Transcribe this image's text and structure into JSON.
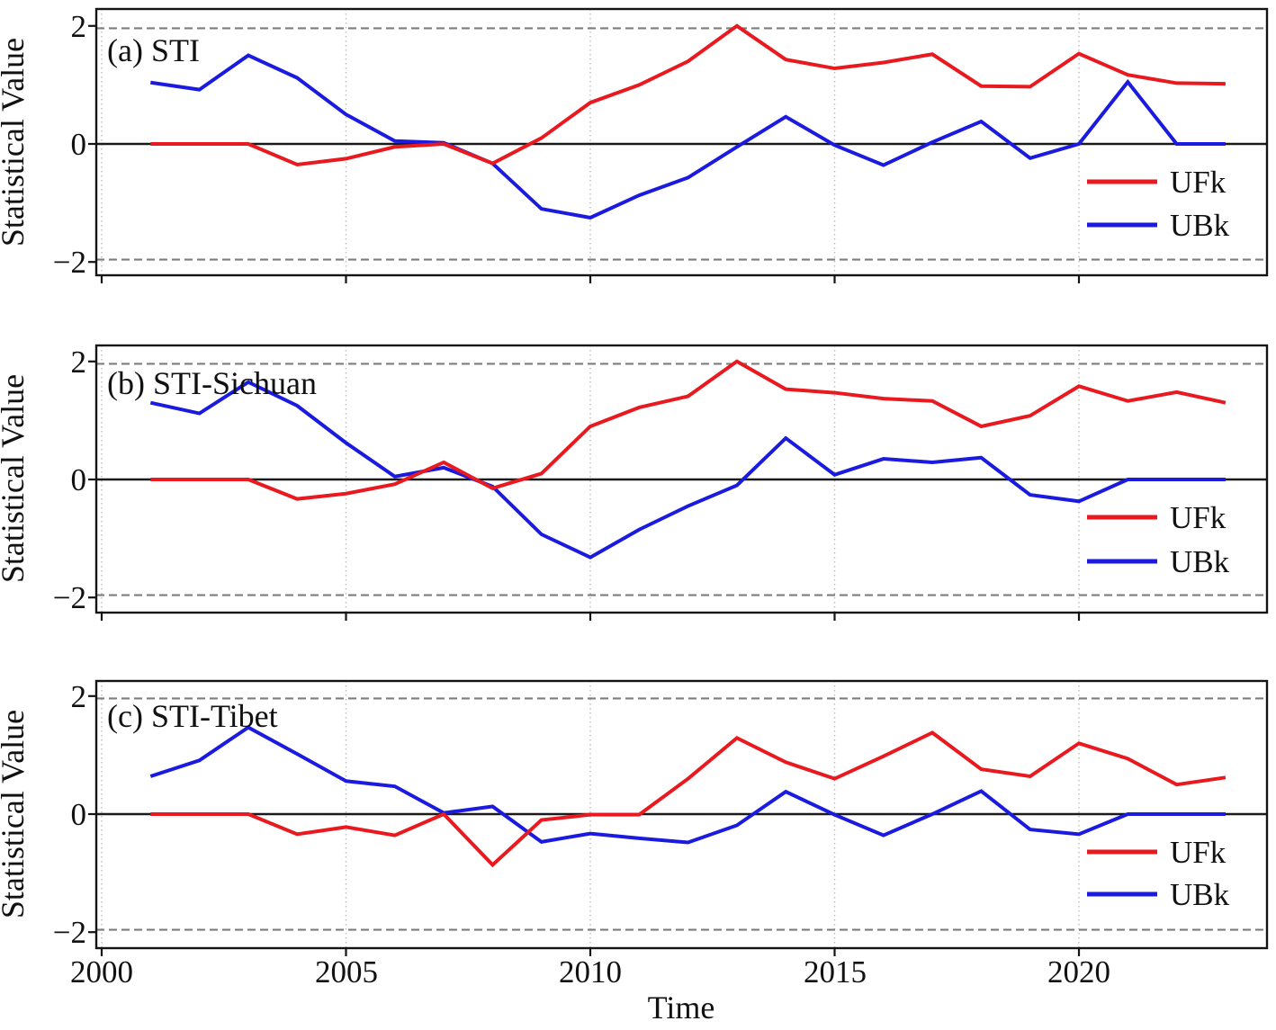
{
  "shared": {
    "ylabel": "Statistical Value",
    "xlabel": "Time",
    "y_tick_labels": [
      "2",
      "0",
      "−2"
    ],
    "x_tick_labels": [
      "2000",
      "2005",
      "2010",
      "2015",
      "2020"
    ],
    "colors": {
      "ufk": "#e8191f",
      "ubk": "#1b1be0",
      "significance_dash": "#7d7d7d",
      "zero_line": "#1a1a1a"
    }
  },
  "chart_data": [
    {
      "type": "line",
      "title": "(a) STI",
      "xlabel": "Time",
      "ylabel": "Statistical Value",
      "x": [
        2001,
        2002,
        2003,
        2004,
        2005,
        2006,
        2007,
        2008,
        2009,
        2010,
        2011,
        2012,
        2013,
        2014,
        2015,
        2016,
        2017,
        2018,
        2019,
        2020,
        2021,
        2022,
        2023
      ],
      "series": [
        {
          "name": "UFk",
          "color": "#e8191f",
          "values": [
            0.0,
            0.0,
            0.0,
            -0.35,
            -0.25,
            -0.05,
            0.0,
            -0.33,
            0.1,
            0.7,
            1.0,
            1.4,
            2.0,
            1.43,
            1.28,
            1.38,
            1.52,
            0.98,
            0.97,
            1.53,
            1.17,
            1.03,
            1.02
          ]
        },
        {
          "name": "UBk",
          "color": "#1b1be0",
          "values": [
            1.04,
            0.92,
            1.5,
            1.12,
            0.5,
            0.05,
            0.02,
            -0.33,
            -1.1,
            -1.25,
            -0.87,
            -0.57,
            -0.05,
            0.46,
            -0.02,
            -0.36,
            0.03,
            0.38,
            -0.24,
            0.0,
            1.05,
            0.0,
            0.0
          ]
        }
      ],
      "x_ticks": [
        2000,
        2005,
        2010,
        2015,
        2020
      ],
      "y_ticks": [
        2,
        0,
        -2
      ],
      "significance_lines": [
        1.96,
        -1.96
      ],
      "ylim": [
        -2.25,
        2.25
      ],
      "grid": "vertical-dotted",
      "legend_position": "lower right"
    },
    {
      "type": "line",
      "title": "(b) STI-Sichuan",
      "xlabel": "Time",
      "ylabel": "Statistical Value",
      "x": [
        2001,
        2002,
        2003,
        2004,
        2005,
        2006,
        2007,
        2008,
        2009,
        2010,
        2011,
        2012,
        2013,
        2014,
        2015,
        2016,
        2017,
        2018,
        2019,
        2020,
        2021,
        2022,
        2023
      ],
      "series": [
        {
          "name": "UFk",
          "color": "#e8191f",
          "values": [
            0.0,
            0.0,
            0.0,
            -0.33,
            -0.24,
            -0.08,
            0.29,
            -0.15,
            0.1,
            0.9,
            1.22,
            1.41,
            2.0,
            1.53,
            1.47,
            1.37,
            1.33,
            0.9,
            1.08,
            1.58,
            1.33,
            1.48,
            1.3
          ]
        },
        {
          "name": "UBk",
          "color": "#1b1be0",
          "values": [
            1.3,
            1.12,
            1.65,
            1.25,
            0.62,
            0.05,
            0.2,
            -0.12,
            -0.93,
            -1.32,
            -0.85,
            -0.45,
            -0.1,
            0.7,
            0.08,
            0.35,
            0.29,
            0.37,
            -0.26,
            -0.37,
            0.0,
            0.0,
            0.0
          ]
        }
      ],
      "x_ticks": [
        2000,
        2005,
        2010,
        2015,
        2020
      ],
      "y_ticks": [
        2,
        0,
        -2
      ],
      "significance_lines": [
        1.96,
        -1.96
      ],
      "ylim": [
        -2.25,
        2.25
      ],
      "grid": "vertical-dotted",
      "legend_position": "lower right"
    },
    {
      "type": "line",
      "title": "(c) STI-Tibet",
      "xlabel": "Time",
      "ylabel": "Statistical Value",
      "x": [
        2001,
        2002,
        2003,
        2004,
        2005,
        2006,
        2007,
        2008,
        2009,
        2010,
        2011,
        2012,
        2013,
        2014,
        2015,
        2016,
        2017,
        2018,
        2019,
        2020,
        2021,
        2022,
        2023
      ],
      "series": [
        {
          "name": "UFk",
          "color": "#e8191f",
          "values": [
            0.0,
            0.0,
            0.0,
            -0.34,
            -0.22,
            -0.36,
            0.0,
            -0.86,
            -0.1,
            -0.01,
            -0.01,
            0.6,
            1.29,
            0.88,
            0.6,
            0.98,
            1.38,
            0.76,
            0.64,
            1.2,
            0.94,
            0.5,
            0.62
          ]
        },
        {
          "name": "UBk",
          "color": "#1b1be0",
          "values": [
            0.64,
            0.91,
            1.47,
            1.02,
            0.56,
            0.47,
            0.02,
            0.13,
            -0.47,
            -0.33,
            -0.41,
            -0.48,
            -0.19,
            0.38,
            -0.01,
            -0.36,
            0.0,
            0.39,
            -0.26,
            -0.34,
            0.0,
            0.0,
            0.0
          ]
        }
      ],
      "x_ticks": [
        2000,
        2005,
        2010,
        2015,
        2020
      ],
      "y_ticks": [
        2,
        0,
        -2
      ],
      "significance_lines": [
        1.96,
        -1.96
      ],
      "ylim": [
        -2.25,
        2.25
      ],
      "grid": "vertical-dotted",
      "legend_position": "lower right"
    }
  ]
}
